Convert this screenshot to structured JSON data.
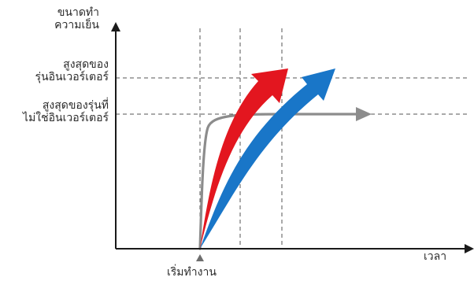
{
  "diagram": {
    "y_axis_label_line1": "ขนาดทำ",
    "y_axis_label_line2": "ความเย็น",
    "x_axis_label": "เวลา",
    "start_label": "เริ่มทำงาน",
    "max_inverter_line1": "สูงสุดของ",
    "max_inverter_line2": "รุ่นอินเวอร์เตอร์",
    "max_non_inverter_line1": "สูงสุดของรุ่นที่",
    "max_non_inverter_line2": "ไม่ใช่อินเวอร์เตอร์",
    "colors": {
      "axis": "#1a1a1a",
      "dashed": "#555555",
      "red_arrow": "#e3161f",
      "blue_arrow": "#1976c8",
      "gray_curve": "#8c8c8c",
      "start_marker": "#6e6e6e"
    }
  }
}
